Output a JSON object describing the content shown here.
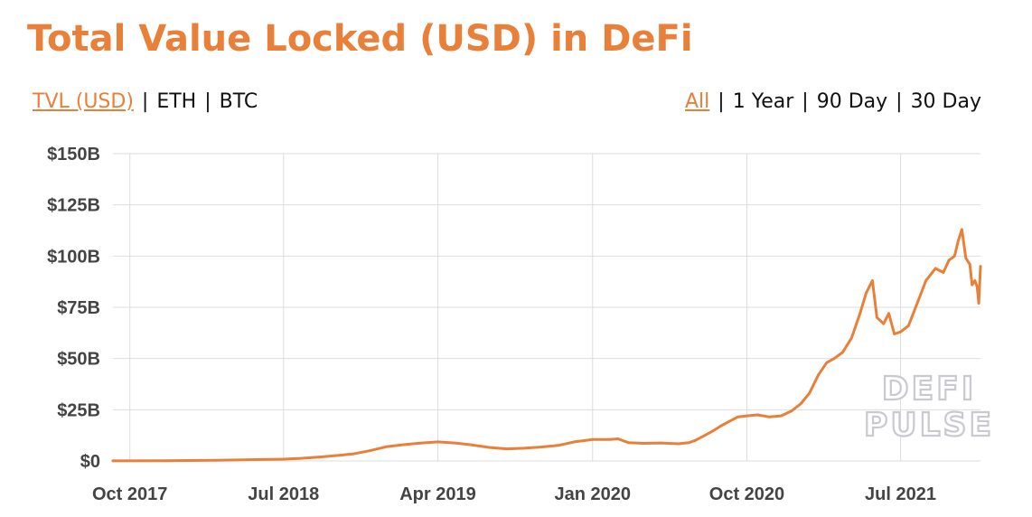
{
  "title": "Total Value Locked (USD) in DeFi",
  "metric_toggle": {
    "options": [
      "TVL (USD)",
      "ETH",
      "BTC"
    ],
    "selected": "TVL (USD)"
  },
  "range_toggle": {
    "options": [
      "All",
      "1 Year",
      "90 Day",
      "30 Day"
    ],
    "selected": "All"
  },
  "watermark": [
    "DEFI",
    "PULSE"
  ],
  "colors": {
    "accent": "#e8803a",
    "grid": "#dddddd",
    "tick_text": "#444444"
  },
  "chart_data": {
    "type": "line",
    "title": "Total Value Locked (USD) in DeFi",
    "xlabel": "",
    "ylabel": "",
    "y_unit": "USD billions",
    "ylim": [
      0,
      150
    ],
    "y_ticks": [
      0,
      25,
      50,
      75,
      100,
      125,
      150
    ],
    "y_tick_labels": [
      "$0",
      "$25B",
      "$50B",
      "$75B",
      "$100B",
      "$125B",
      "$150B"
    ],
    "x_ticks": [
      "2017-10-01",
      "2018-07-01",
      "2019-04-01",
      "2020-01-01",
      "2020-10-01",
      "2021-07-01"
    ],
    "x_tick_labels": [
      "Oct 2017",
      "Jul 2018",
      "Apr 2019",
      "Jan 2020",
      "Oct 2020",
      "Jul 2021"
    ],
    "xlim": [
      "2017-09-01",
      "2021-11-20"
    ],
    "grid": true,
    "series": [
      {
        "color": "#e8803a",
        "points": [
          [
            "2017-09-01",
            0.05
          ],
          [
            "2017-12-01",
            0.1
          ],
          [
            "2018-03-01",
            0.3
          ],
          [
            "2018-05-01",
            0.6
          ],
          [
            "2018-07-01",
            0.9
          ],
          [
            "2018-08-01",
            1.3
          ],
          [
            "2018-09-01",
            1.9
          ],
          [
            "2018-10-01",
            2.6
          ],
          [
            "2018-11-01",
            3.4
          ],
          [
            "2018-12-01",
            5.0
          ],
          [
            "2019-01-01",
            7.0
          ],
          [
            "2019-02-01",
            8.0
          ],
          [
            "2019-03-01",
            8.7
          ],
          [
            "2019-04-01",
            9.3
          ],
          [
            "2019-05-01",
            8.8
          ],
          [
            "2019-06-01",
            7.8
          ],
          [
            "2019-07-01",
            6.6
          ],
          [
            "2019-08-01",
            5.9
          ],
          [
            "2019-09-01",
            6.2
          ],
          [
            "2019-10-01",
            6.8
          ],
          [
            "2019-11-01",
            7.6
          ],
          [
            "2019-12-01",
            9.4
          ],
          [
            "2020-01-01",
            10.5
          ],
          [
            "2020-02-01",
            10.5
          ],
          [
            "2020-02-15",
            10.8
          ],
          [
            "2020-03-05",
            8.9
          ],
          [
            "2020-04-01",
            8.6
          ],
          [
            "2020-05-01",
            8.8
          ],
          [
            "2020-06-01",
            8.4
          ],
          [
            "2020-06-20",
            8.9
          ],
          [
            "2020-07-01",
            10.0
          ],
          [
            "2020-07-15",
            12.0
          ],
          [
            "2020-08-01",
            14.5
          ],
          [
            "2020-08-15",
            17.0
          ],
          [
            "2020-09-01",
            19.5
          ],
          [
            "2020-09-15",
            21.5
          ],
          [
            "2020-10-01",
            22.0
          ],
          [
            "2020-10-20",
            22.5
          ],
          [
            "2020-11-10",
            21.5
          ],
          [
            "2020-12-01",
            22.0
          ],
          [
            "2020-12-20",
            24.5
          ],
          [
            "2021-01-05",
            28.0
          ],
          [
            "2021-01-20",
            33.0
          ],
          [
            "2021-02-05",
            42.0
          ],
          [
            "2021-02-20",
            48.0
          ],
          [
            "2021-03-05",
            50.0
          ],
          [
            "2021-03-20",
            53.0
          ],
          [
            "2021-04-05",
            60.0
          ],
          [
            "2021-04-20",
            72.0
          ],
          [
            "2021-05-01",
            82.0
          ],
          [
            "2021-05-12",
            88.0
          ],
          [
            "2021-05-20",
            70.0
          ],
          [
            "2021-06-01",
            67.0
          ],
          [
            "2021-06-10",
            72.0
          ],
          [
            "2021-06-20",
            62.0
          ],
          [
            "2021-07-01",
            63.0
          ],
          [
            "2021-07-15",
            66.0
          ],
          [
            "2021-08-01",
            78.0
          ],
          [
            "2021-08-15",
            88.0
          ],
          [
            "2021-09-01",
            94.0
          ],
          [
            "2021-09-15",
            92.0
          ],
          [
            "2021-09-25",
            98.0
          ],
          [
            "2021-10-05",
            100.0
          ],
          [
            "2021-10-12",
            108.0
          ],
          [
            "2021-10-18",
            113.0
          ],
          [
            "2021-10-25",
            99.0
          ],
          [
            "2021-11-01",
            96.0
          ],
          [
            "2021-11-05",
            86.0
          ],
          [
            "2021-11-10",
            88.0
          ],
          [
            "2021-11-14",
            85.0
          ],
          [
            "2021-11-17",
            77.0
          ],
          [
            "2021-11-20",
            95.0
          ]
        ]
      }
    ]
  }
}
